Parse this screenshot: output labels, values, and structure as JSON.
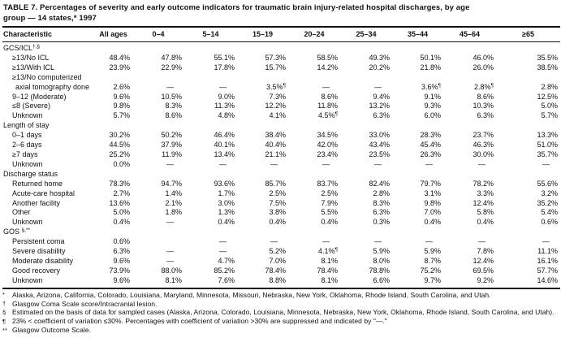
{
  "title": {
    "lines": [
      "TABLE 7. Percentages of severity and early outcome indicators for traumatic brain injury-related hospital discharges, by age",
      "group — 14 states,* 1997"
    ]
  },
  "table": {
    "columns": [
      "Characteristic",
      "All ages",
      "0–4",
      "5–14",
      "15–19",
      "20–24",
      "25–34",
      "35–44",
      "45–64",
      "≥65"
    ],
    "sections": [
      {
        "header": {
          "text": "GCS/ICL",
          "sup": "†,§"
        },
        "rows": [
          {
            "label": "≥13/No ICL",
            "values": [
              "48.4%",
              "47.8%",
              "55.1%",
              "57.3%",
              "58.5%",
              "49.3%",
              "50.1%",
              "46.0%",
              "35.5%"
            ]
          },
          {
            "label": "≥13/With ICL",
            "values": [
              "23.9%",
              "22.9%",
              "17.8%",
              "15.7%",
              "14.2%",
              "20.2%",
              "21.8%",
              "26.0%",
              "38.5%"
            ]
          },
          {
            "label": "≥13/No computerized\naxial tomography done",
            "values": [
              "2.6%",
              "—",
              "—",
              "3.5%¶",
              "—",
              "—",
              "3.6%¶",
              "2.8%¶",
              "2.8%"
            ]
          },
          {
            "label": "9–12 (Moderate)",
            "values": [
              "9.6%",
              "10.5%",
              "9.0%",
              "7.3%",
              "8.6%",
              "9.4%",
              "9.1%",
              "8.6%",
              "12.5%"
            ]
          },
          {
            "label": "≤8 (Severe)",
            "values": [
              "9.8%",
              "8.3%",
              "11.3%",
              "12.2%",
              "11.8%",
              "13.2%",
              "9.3%",
              "10.3%",
              "5.0%"
            ]
          },
          {
            "label": "Unknown",
            "values": [
              "5.7%",
              "8.6%",
              "4.8%",
              "4.1%",
              "4.5%¶",
              "6.3%",
              "6.0%",
              "6.3%",
              "5.7%"
            ]
          }
        ]
      },
      {
        "header": {
          "text": "Length of stay",
          "sup": ""
        },
        "rows": [
          {
            "label": "0–1 days",
            "values": [
              "30.2%",
              "50.2%",
              "46.4%",
              "38.4%",
              "34.5%",
              "33.0%",
              "28.3%",
              "23.7%",
              "13.3%"
            ]
          },
          {
            "label": "2–6 days",
            "values": [
              "44.5%",
              "37.9%",
              "40.1%",
              "40.4%",
              "42.0%",
              "43.4%",
              "45.4%",
              "46.3%",
              "51.0%"
            ]
          },
          {
            "label": "≥7 days",
            "values": [
              "25.2%",
              "11.9%",
              "13.4%",
              "21.1%",
              "23.4%",
              "23.5%",
              "26.3%",
              "30.0%",
              "35.7%"
            ]
          },
          {
            "label": "Unknown",
            "values": [
              "0.0%",
              "—",
              "—",
              "—",
              "—",
              "—",
              "—",
              "—",
              "—"
            ]
          }
        ]
      },
      {
        "header": {
          "text": "Discharge status",
          "sup": ""
        },
        "rows": [
          {
            "label": "Returned home",
            "values": [
              "78.3%",
              "94.7%",
              "93.6%",
              "85.7%",
              "83.7%",
              "82.4%",
              "79.7%",
              "78.2%",
              "55.6%"
            ]
          },
          {
            "label": "Acute-care hospital",
            "values": [
              "2.7%",
              "1.4%",
              "1.7%",
              "2.5%",
              "2.5%",
              "2.8%",
              "3.1%",
              "3.3%",
              "3.2%"
            ]
          },
          {
            "label": "Another facility",
            "values": [
              "13.6%",
              "2.1%",
              "3.0%",
              "7.5%",
              "7.9%",
              "8.3%",
              "9.8%",
              "12.4%",
              "35.2%"
            ]
          },
          {
            "label": "Other",
            "values": [
              "5.0%",
              "1.8%",
              "1.3%",
              "3.8%",
              "5.5%",
              "6.3%",
              "7.0%",
              "5.8%",
              "5.4%"
            ]
          },
          {
            "label": "Unknown",
            "values": [
              "0.4%",
              "—",
              "0.4%",
              "0.4%",
              "0.4%",
              "0.3%",
              "0.4%",
              "0.4%",
              "0.6%"
            ]
          }
        ]
      },
      {
        "header": {
          "text": "GOS ",
          "sup": "§,**"
        },
        "rows": [
          {
            "label": "Persistent coma",
            "values": [
              "0.6%",
              "",
              "—",
              "—",
              "—",
              "—",
              "—",
              "—",
              "—"
            ]
          },
          {
            "label": "Severe disability",
            "values": [
              "6.3%",
              "—",
              "—",
              "5.2%",
              "4.1%¶",
              "5.9%",
              "5.9%",
              "7.8%",
              "11.1%"
            ]
          },
          {
            "label": "Moderate disability",
            "values": [
              "9.6%",
              "—",
              "4.7%",
              "7.0%",
              "8.1%",
              "8.0%",
              "8.7%",
              "12.4%",
              "16.1%"
            ]
          },
          {
            "label": "Good recovery",
            "values": [
              "73.9%",
              "88.0%",
              "85.2%",
              "78.4%",
              "78.4%",
              "78.8%",
              "75.2%",
              "69.5%",
              "57.7%"
            ]
          },
          {
            "label": "Unknown",
            "values": [
              "9.6%",
              "8.1%",
              "7.6%",
              "8.8%",
              "8.1%",
              "6.6%",
              "9.7%",
              "9.2%",
              "14.6%"
            ]
          }
        ]
      }
    ]
  },
  "footnotes": [
    {
      "marker": "*",
      "text": "Alaska, Arizona, California, Colorado, Louisiana, Maryland, Minnesota, Missouri, Nebraska, New York, Oklahoma, Rhode Island, South Carolina, and Utah."
    },
    {
      "marker": "†",
      "text": "Glasgow Coma Scale score/Intracranial lesion."
    },
    {
      "marker": "§",
      "text": "Estimated on the basis of data for sampled cases (Alaska, Arizona, Colorado, Louisiana, Minnesota, Nebraska, New York, Oklahoma, Rhode Island, South Carolina, and Utah)."
    },
    {
      "marker": "¶",
      "text": "23% < coefficient of variation ≤30%.  Percentages with coefficient of variation >30% are suppressed and indicated by \"—.\""
    },
    {
      "marker": "**",
      "text": "Glasgow Outcome Scale."
    }
  ]
}
